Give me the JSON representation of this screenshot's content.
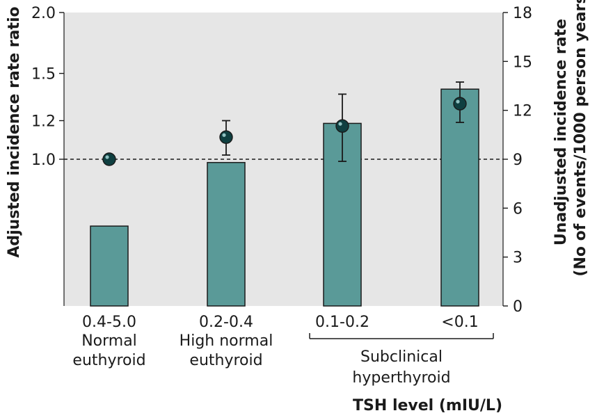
{
  "chart_data": {
    "type": "bar",
    "categories": [
      {
        "range": "0.4-5.0",
        "line1": "Normal",
        "line2": "euthyroid"
      },
      {
        "range": "0.2-0.4",
        "line1": "High normal",
        "line2": "euthyroid"
      },
      {
        "range": "0.1-0.2",
        "line1": "",
        "line2": ""
      },
      {
        "range": "<0.1",
        "line1": "",
        "line2": ""
      }
    ],
    "group_label": {
      "line1": "Subclinical",
      "line2": "hyperthyroid",
      "categories": [
        2,
        3
      ]
    },
    "bars": {
      "axis": "right",
      "values": [
        4.9,
        8.8,
        11.2,
        13.3
      ]
    },
    "points": {
      "axis": "left",
      "values": [
        1.0,
        1.11,
        1.17,
        1.3
      ],
      "ci_low": [
        null,
        1.02,
        0.99,
        1.19
      ],
      "ci_high": [
        null,
        1.2,
        1.36,
        1.44
      ]
    },
    "reference_line": {
      "axis": "left",
      "value": 1.0,
      "style": "dashed"
    },
    "left_axis": {
      "title": "Adjusted incidence rate ratio",
      "ticks": [
        1.0,
        1.2,
        1.5,
        2.0
      ],
      "tick_labels": [
        "1.0",
        "1.2",
        "1.5",
        "2.0"
      ],
      "scale": "log",
      "range": [
        0.6,
        2.0
      ]
    },
    "right_axis": {
      "title_line1": "Unadjusted incidence rate",
      "title_line2": "(No of events/1000 person years)",
      "ticks": [
        0,
        3,
        6,
        9,
        12,
        15,
        18
      ],
      "tick_labels": [
        "0",
        "3",
        "6",
        "9",
        "12",
        "15",
        "18"
      ],
      "range": [
        0,
        18
      ]
    },
    "xlabel": "TSH level (mIU/L)",
    "colors": {
      "plot_background": "#e6e6e6",
      "bar_fill": "#5a9a98",
      "bar_stroke": "#1a1a1a",
      "point_fill": "#0f3f40",
      "text": "#1a1a1a"
    }
  }
}
